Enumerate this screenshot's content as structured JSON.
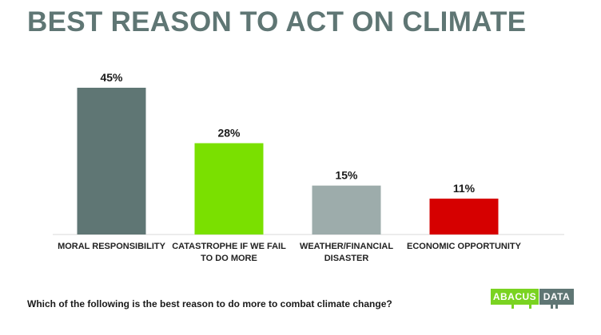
{
  "header": {
    "title": "BEST REASON TO ACT ON CLIMATE"
  },
  "footer": {
    "question": "Which of the following is the best reason to do more to combat climate change?"
  },
  "logo": {
    "left_text": "ABACUS",
    "right_text": "DATA",
    "left_color": "#7ad321",
    "right_color": "#5f7674"
  },
  "chart_data": {
    "type": "bar",
    "title": "BEST REASON TO ACT ON CLIMATE",
    "xlabel": "",
    "ylabel": "",
    "ylim": [
      0,
      45
    ],
    "grid": false,
    "categories": [
      [
        "MORAL RESPONSIBILITY"
      ],
      [
        "CATASTROPHE IF WE FAIL",
        "TO DO MORE"
      ],
      [
        "WEATHER/FINANCIAL",
        "DISASTER"
      ],
      [
        "ECONOMIC OPPORTUNITY"
      ]
    ],
    "values": [
      45,
      28,
      15,
      11
    ],
    "value_labels": [
      "45%",
      "28%",
      "15%",
      "11%"
    ],
    "colors": [
      "#5f7674",
      "#7ae000",
      "#9dacab",
      "#d60000"
    ]
  }
}
